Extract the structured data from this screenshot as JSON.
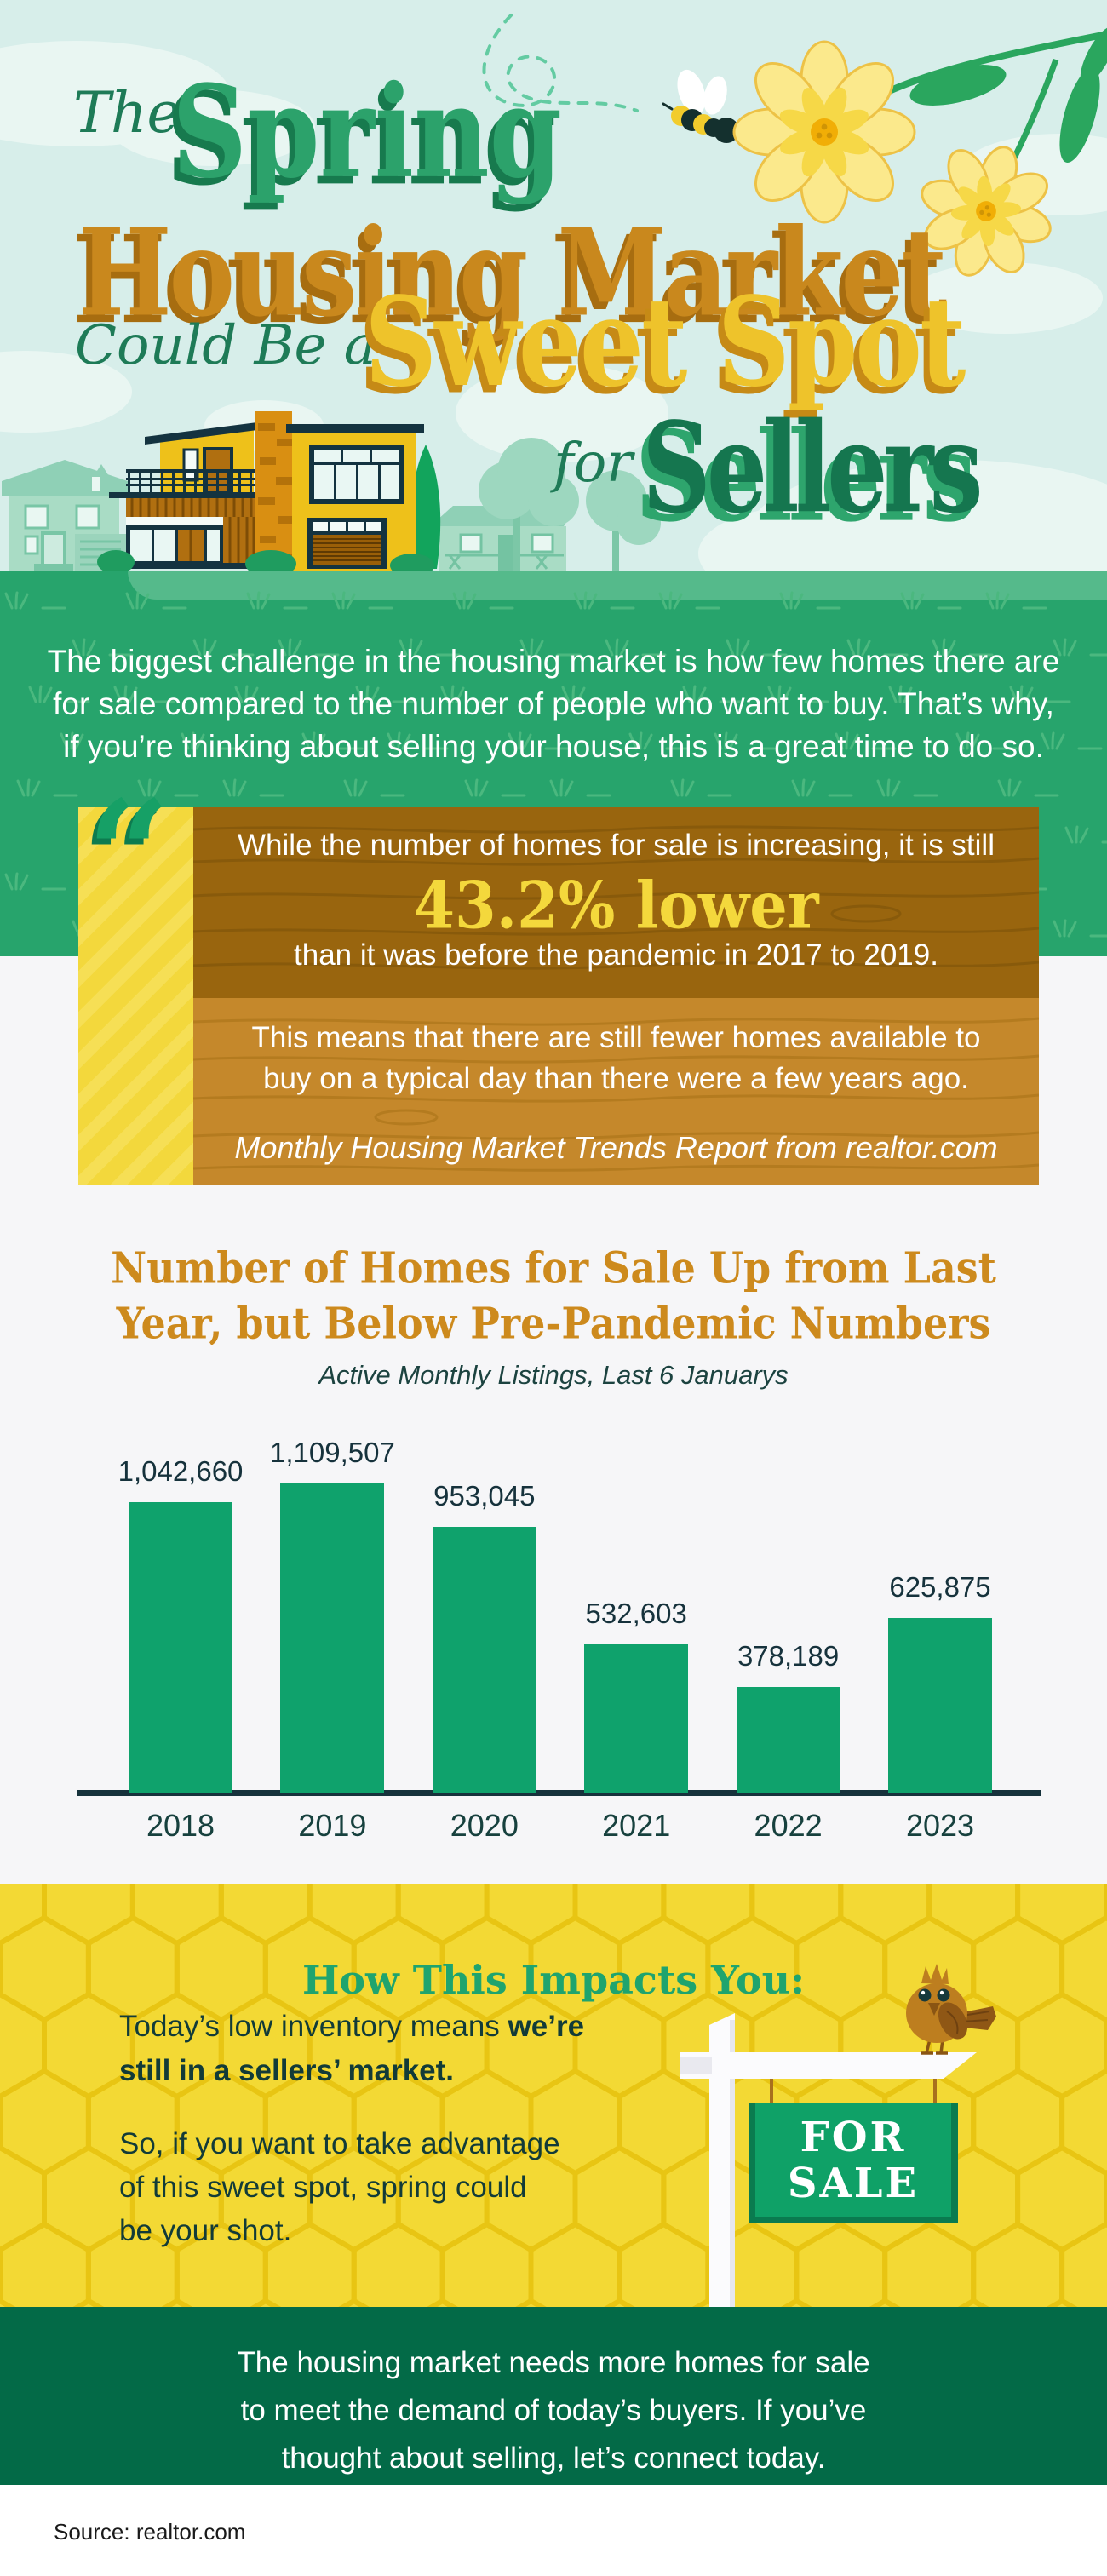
{
  "colors": {
    "sky": "#d7eeea",
    "band_green": "#27a46c",
    "band_light_strip": "#55ba8b",
    "accent_green": "#1e7b57",
    "spring_green": "#2ca26b",
    "title_orange": "#c9881d",
    "title_gold": "#eec32b",
    "sellers_green": "#15764f",
    "quote_stripe_yellow": "#f3d83c",
    "quote_mark_green": "#16a066",
    "wood_dark": "#99650e",
    "wood_light": "#c5882b",
    "stat_gold": "#f4d83c",
    "chart_bg": "#f6f6f8",
    "chart_title_orange": "#cd8a1d",
    "bar_green": "#0fa26c",
    "chart_text": "#16323c",
    "impact_yellow": "#f3d934",
    "honeycomb_line": "#e8c513",
    "impact_title_green": "#1fa46e",
    "impact_text": "#123b38",
    "sign_green": "#0fa167",
    "sign_green_dark": "#0a7b4f",
    "outro_green": "#036a47"
  },
  "header": {
    "accent_1": "The",
    "word_1": "Spring",
    "line_2": "Housing Market",
    "accent_3": "Could Be a",
    "word_3": "Sweet Spot",
    "accent_4": "for",
    "word_4": "Sellers"
  },
  "intro": {
    "lines": [
      "The biggest challenge in the housing market is how few homes there are",
      "for sale compared to the number of people who want to buy. That’s why,",
      "if you’re thinking about selling your house, this is a great time to do so."
    ]
  },
  "quote": {
    "mark": "“",
    "intro_line": "While the number of homes for sale is increasing, it is still",
    "stat": "43.2% lower",
    "context_line": "than it was before the pandemic in 2017 to 2019.",
    "body_lines": [
      "This means that there are still fewer homes available to",
      "buy on a typical day than there were a few years ago."
    ],
    "attribution": "Monthly Housing Market Trends Report from realtor.com"
  },
  "chart_data": {
    "type": "bar",
    "title": "Number of Homes for Sale Up from Last Year, but Below Pre-Pandemic Numbers",
    "title_lines": [
      "Number of Homes for Sale Up from Last",
      "Year, but Below Pre-Pandemic Numbers"
    ],
    "subtitle": "Active Monthly Listings, Last 6 Januarys",
    "categories": [
      "2018",
      "2019",
      "2020",
      "2021",
      "2022",
      "2023"
    ],
    "values": [
      1042660,
      1109507,
      953045,
      532603,
      378189,
      625875
    ],
    "value_labels": [
      "1,042,660",
      "1,109,507",
      "953,045",
      "532,603",
      "378,189",
      "625,875"
    ],
    "xlabel": "",
    "ylabel": "",
    "ylim": [
      0,
      1200000
    ],
    "grid": false,
    "legend": false,
    "bar_color": "#0fa26c",
    "label_color": "#16323c",
    "axis_color": "#16323c"
  },
  "impact": {
    "title": "How This Impacts You:",
    "line1_normal": "Today’s low inventory means ",
    "line1_bold": "we’re",
    "line2_bold": "still in a sellers’ market.",
    "line3": "So, if you want to take advantage",
    "line4": "of this sweet spot, spring could",
    "line5": "be your shot.",
    "sign_line1": "FOR",
    "sign_line2": "SALE"
  },
  "outro": {
    "lines": [
      "The housing market needs more homes for sale",
      "to meet the demand of today’s buyers. If you’ve",
      "thought about selling, let’s connect today."
    ]
  },
  "footer": {
    "source": "Source: realtor.com"
  }
}
